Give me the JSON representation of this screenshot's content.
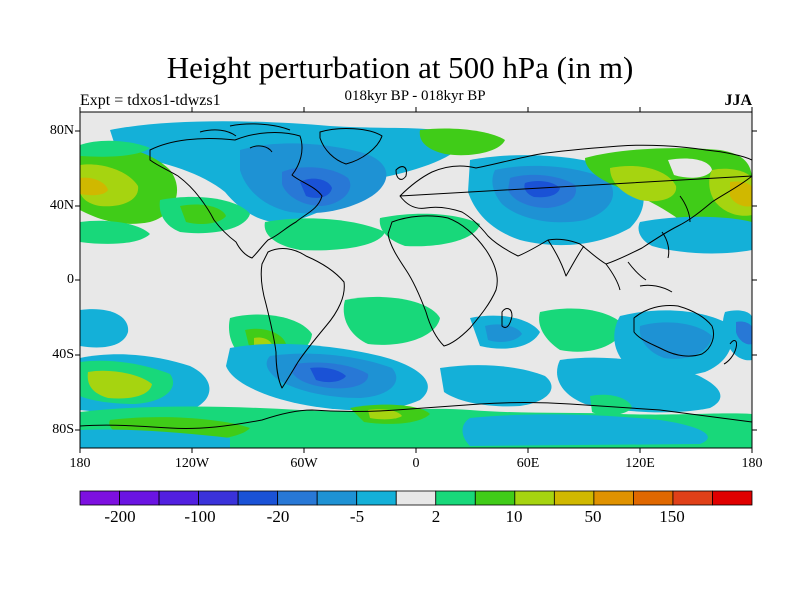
{
  "title": "Height perturbation at 500 hPa (in m)",
  "subtitle": "018kyr BP - 018kyr BP",
  "expt_label": "Expt = tdxos1-tdwzs1",
  "season": "JJA",
  "lat_labels": [
    "80N",
    "40N",
    "0",
    "40S",
    "80S"
  ],
  "lon_labels": [
    "180",
    "120W",
    "60W",
    "0",
    "60E",
    "120E",
    "180"
  ],
  "colorbar": {
    "colors": [
      "#7d10e0",
      "#6a14e2",
      "#5220e0",
      "#3a32da",
      "#1a52d6",
      "#2878d6",
      "#1e92d4",
      "#14b0d8",
      "#e8e8e8",
      "#18d87a",
      "#40cc18",
      "#a6d410",
      "#d0b800",
      "#e09200",
      "#e06800",
      "#e04018",
      "#e00000"
    ],
    "labels": [
      "-200",
      "-100",
      "-20",
      "-5",
      "2",
      "10",
      "50",
      "150"
    ]
  },
  "colors": {
    "neutral": "#e8e8e8",
    "blue_dark": "#1a52d6",
    "blue": "#2878d6",
    "blue_mid": "#1e92d4",
    "cyan": "#14b0d8",
    "green_light": "#18d87a",
    "green": "#40cc18",
    "yellow_green": "#a6d410",
    "yellow": "#d0b800",
    "coast": "#000000"
  }
}
